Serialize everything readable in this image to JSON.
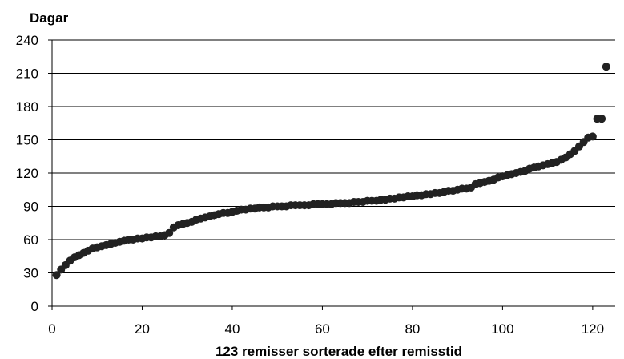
{
  "chart_data": {
    "type": "scatter",
    "title": "",
    "ylabel": "Dagar",
    "xlabel": "123 remisser sorterade efter remisstid",
    "xlim": [
      0,
      125
    ],
    "ylim": [
      0,
      240
    ],
    "x_ticks": [
      0,
      20,
      40,
      60,
      80,
      100,
      120
    ],
    "y_ticks": [
      0,
      30,
      60,
      90,
      120,
      150,
      180,
      210,
      240
    ],
    "grid": "horizontal",
    "marker_color": "#222222",
    "series": [
      {
        "name": "",
        "x": [
          1,
          2,
          3,
          4,
          5,
          6,
          7,
          8,
          9,
          10,
          11,
          12,
          13,
          14,
          15,
          16,
          17,
          18,
          19,
          20,
          21,
          22,
          23,
          24,
          25,
          26,
          27,
          28,
          29,
          30,
          31,
          32,
          33,
          34,
          35,
          36,
          37,
          38,
          39,
          40,
          41,
          42,
          43,
          44,
          45,
          46,
          47,
          48,
          49,
          50,
          51,
          52,
          53,
          54,
          55,
          56,
          57,
          58,
          59,
          60,
          61,
          62,
          63,
          64,
          65,
          66,
          67,
          68,
          69,
          70,
          71,
          72,
          73,
          74,
          75,
          76,
          77,
          78,
          79,
          80,
          81,
          82,
          83,
          84,
          85,
          86,
          87,
          88,
          89,
          90,
          91,
          92,
          93,
          94,
          95,
          96,
          97,
          98,
          99,
          100,
          101,
          102,
          103,
          104,
          105,
          106,
          107,
          108,
          109,
          110,
          111,
          112,
          113,
          114,
          115,
          116,
          117,
          118,
          119,
          120,
          121,
          122,
          123
        ],
        "y": [
          28,
          33,
          37,
          41,
          44,
          46,
          48,
          50,
          52,
          53,
          54,
          55,
          56,
          57,
          58,
          59,
          60,
          60,
          61,
          61,
          62,
          62,
          63,
          63,
          64,
          66,
          71,
          73,
          74,
          75,
          76,
          78,
          79,
          80,
          81,
          82,
          83,
          84,
          84,
          85,
          86,
          87,
          87,
          88,
          88,
          89,
          89,
          89,
          90,
          90,
          90,
          90,
          91,
          91,
          91,
          91,
          91,
          92,
          92,
          92,
          92,
          92,
          93,
          93,
          93,
          93,
          94,
          94,
          94,
          95,
          95,
          95,
          96,
          96,
          97,
          97,
          98,
          98,
          99,
          99,
          100,
          100,
          101,
          101,
          102,
          102,
          103,
          104,
          104,
          105,
          106,
          106,
          107,
          110,
          111,
          112,
          113,
          114,
          116,
          117,
          118,
          119,
          120,
          121,
          122,
          124,
          125,
          126,
          127,
          128,
          129,
          130,
          132,
          134,
          137,
          140,
          144,
          148,
          152,
          153,
          169,
          169,
          216
        ]
      }
    ]
  }
}
